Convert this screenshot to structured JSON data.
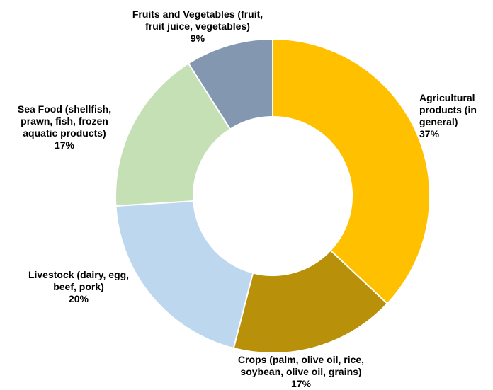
{
  "chart_data": {
    "type": "pie",
    "variant": "donut",
    "title": "",
    "legend": "none",
    "slices": [
      {
        "label_lines": [
          "Agricultural",
          "products (in",
          "general)"
        ],
        "value": 37,
        "value_label": "37%",
        "color": "#FFC000"
      },
      {
        "label_lines": [
          "Crops (palm, olive oil, rice,",
          "soybean, olive oil, grains)"
        ],
        "value": 17,
        "value_label": "17%",
        "color": "#B8900A"
      },
      {
        "label_lines": [
          "Livestock (dairy, egg,",
          "beef, pork)"
        ],
        "value": 20,
        "value_label": "20%",
        "color": "#BDD7EE"
      },
      {
        "label_lines": [
          "Sea Food  (shellfish,",
          "prawn, fish, frozen",
          "aquatic products)"
        ],
        "value": 17,
        "value_label": "17%",
        "color": "#C5E0B4"
      },
      {
        "label_lines": [
          "Fruits and Vegetables (fruit,",
          "fruit juice, vegetables)"
        ],
        "value": 9,
        "value_label": "9%",
        "color": "#8497B0"
      }
    ]
  }
}
